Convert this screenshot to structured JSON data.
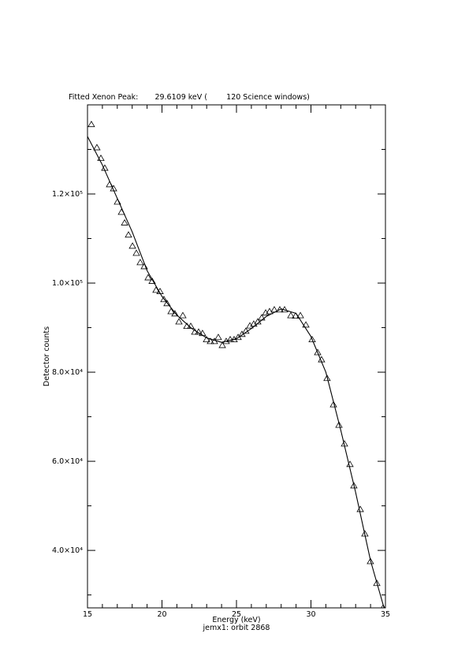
{
  "chart_data": {
    "type": "line",
    "title": "Fitted Xenon Peak:       29.6109 keV (        120 Science windows)",
    "x_label": "Energy (keV)",
    "subtitle": "jemx1: orbit 2868",
    "y_label": "Detector counts",
    "xlim": [
      15,
      35
    ],
    "xticks": [
      15,
      20,
      25,
      30,
      35
    ],
    "x_minor_divisions": 5,
    "ylim": [
      27100,
      140000
    ],
    "yticks": [
      {
        "value": 40000,
        "label": "4.0×10⁴"
      },
      {
        "value": 60000,
        "label": "6.0×10⁴"
      },
      {
        "value": 80000,
        "label": "8.0×10⁴"
      },
      {
        "value": 100000,
        "label": "1.0×10⁵"
      },
      {
        "value": 120000,
        "label": "1.2×10⁵"
      }
    ],
    "y_minor_divisions": 2,
    "series": [
      {
        "style": "triangle",
        "color": "#000000",
        "x": [
          15.26,
          15.63,
          15.9,
          16.16,
          16.48,
          16.75,
          17.01,
          17.28,
          17.49,
          17.75,
          18.02,
          18.28,
          18.54,
          18.81,
          19.07,
          19.34,
          19.6,
          19.87,
          20.13,
          20.34,
          20.61,
          20.87,
          21.14,
          21.4,
          21.67,
          21.93,
          22.2,
          22.46,
          22.72,
          22.99,
          23.25,
          23.52,
          23.78,
          24.05,
          24.31,
          24.58,
          24.84,
          25.11,
          25.37,
          25.63,
          25.9,
          26.16,
          26.43,
          26.69,
          26.96,
          27.22,
          27.54,
          27.91,
          28.23,
          28.65,
          28.97,
          29.29,
          29.66,
          30.08,
          30.45,
          30.71,
          31.08,
          31.51,
          31.88,
          32.25,
          32.62,
          32.88,
          33.31,
          33.62,
          33.99,
          34.42,
          34.84
        ],
        "values": [
          135600,
          130400,
          128000,
          125800,
          122100,
          121200,
          118200,
          115900,
          113500,
          110800,
          108300,
          106700,
          104600,
          103700,
          101200,
          100400,
          98400,
          98100,
          96300,
          95400,
          93600,
          93100,
          91300,
          92700,
          90300,
          90300,
          89000,
          89000,
          88700,
          87300,
          86900,
          86900,
          87800,
          86000,
          86900,
          87300,
          87300,
          87800,
          88500,
          89200,
          90400,
          90800,
          91300,
          92200,
          93300,
          93600,
          94000,
          94000,
          94000,
          92700,
          92600,
          92700,
          90600,
          87300,
          84400,
          82800,
          78600,
          72700,
          68100,
          63900,
          59300,
          54500,
          49200,
          43700,
          37500,
          32600,
          27100
        ]
      },
      {
        "style": "line",
        "color": "#000000",
        "x": [
          15,
          16,
          17,
          18,
          19,
          20,
          21,
          22,
          23,
          24,
          25,
          26,
          27,
          28,
          29,
          30,
          31,
          32,
          33,
          34,
          35
        ],
        "values": [
          132900,
          126500,
          119000,
          111500,
          102800,
          97000,
          92800,
          89800,
          87700,
          86700,
          87500,
          89800,
          92500,
          94200,
          93200,
          88000,
          80000,
          67000,
          53000,
          37700,
          26000
        ]
      }
    ]
  }
}
